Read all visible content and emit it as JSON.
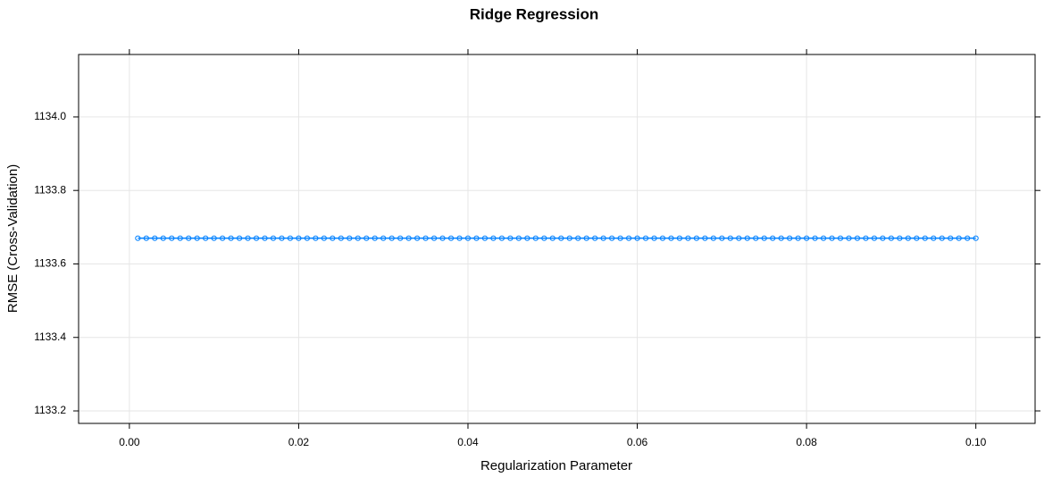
{
  "chart_data": {
    "type": "line",
    "title": "Ridge Regression",
    "xlabel": "Regularization Parameter",
    "ylabel": "RMSE (Cross-Validation)",
    "x": [
      0.001,
      0.002,
      0.003,
      0.004,
      0.005,
      0.006,
      0.007,
      0.008,
      0.009,
      0.01,
      0.011,
      0.012,
      0.013,
      0.014,
      0.015,
      0.016,
      0.017,
      0.018,
      0.019,
      0.02,
      0.021,
      0.022,
      0.023,
      0.024,
      0.025,
      0.026,
      0.027,
      0.028,
      0.029,
      0.03,
      0.031,
      0.032,
      0.033,
      0.034,
      0.035,
      0.036,
      0.037,
      0.038,
      0.039,
      0.04,
      0.041,
      0.042,
      0.043,
      0.044,
      0.045,
      0.046,
      0.047,
      0.048,
      0.049,
      0.05,
      0.051,
      0.052,
      0.053,
      0.054,
      0.055,
      0.056,
      0.057,
      0.058,
      0.059,
      0.06,
      0.061,
      0.062,
      0.063,
      0.064,
      0.065,
      0.066,
      0.067,
      0.068,
      0.069,
      0.07,
      0.071,
      0.072,
      0.073,
      0.074,
      0.075,
      0.076,
      0.077,
      0.078,
      0.079,
      0.08,
      0.081,
      0.082,
      0.083,
      0.084,
      0.085,
      0.086,
      0.087,
      0.088,
      0.089,
      0.09,
      0.091,
      0.092,
      0.093,
      0.094,
      0.095,
      0.096,
      0.097,
      0.098,
      0.099,
      0.1
    ],
    "values": [
      1133.67,
      1133.67,
      1133.67,
      1133.67,
      1133.67,
      1133.67,
      1133.67,
      1133.67,
      1133.67,
      1133.67,
      1133.67,
      1133.67,
      1133.67,
      1133.67,
      1133.67,
      1133.67,
      1133.67,
      1133.67,
      1133.67,
      1133.67,
      1133.67,
      1133.67,
      1133.67,
      1133.67,
      1133.67,
      1133.67,
      1133.67,
      1133.67,
      1133.67,
      1133.67,
      1133.67,
      1133.67,
      1133.67,
      1133.67,
      1133.67,
      1133.67,
      1133.67,
      1133.67,
      1133.67,
      1133.67,
      1133.67,
      1133.67,
      1133.67,
      1133.67,
      1133.67,
      1133.67,
      1133.67,
      1133.67,
      1133.67,
      1133.67,
      1133.67,
      1133.67,
      1133.67,
      1133.67,
      1133.67,
      1133.67,
      1133.67,
      1133.67,
      1133.67,
      1133.67,
      1133.67,
      1133.67,
      1133.67,
      1133.67,
      1133.67,
      1133.67,
      1133.67,
      1133.67,
      1133.67,
      1133.67,
      1133.67,
      1133.67,
      1133.67,
      1133.67,
      1133.67,
      1133.67,
      1133.67,
      1133.67,
      1133.67,
      1133.67,
      1133.67,
      1133.67,
      1133.67,
      1133.67,
      1133.67,
      1133.67,
      1133.67,
      1133.67,
      1133.67,
      1133.67,
      1133.67,
      1133.67,
      1133.67,
      1133.67,
      1133.67,
      1133.67,
      1133.67,
      1133.67,
      1133.67,
      1133.67
    ],
    "color": "#0080ff",
    "markers": true,
    "xlim": [
      -0.006,
      0.107
    ],
    "ylim": [
      1133.166,
      1134.17
    ],
    "xticks": [
      {
        "value": 0,
        "label": "0.00"
      },
      0.02,
      0.04,
      0.06,
      0.08,
      {
        "value": 0.1,
        "label": "0.10"
      }
    ],
    "yticks": [
      1133.2,
      1133.4,
      1133.6,
      1133.8,
      {
        "value": 1134,
        "label": "1134.0"
      }
    ],
    "grid": true
  }
}
